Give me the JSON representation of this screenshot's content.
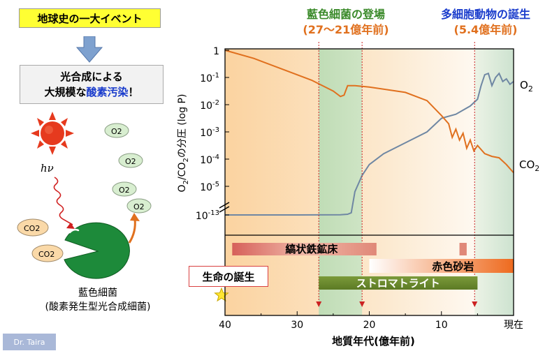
{
  "left_panel": {
    "title": "地球史の一大イベント",
    "oxygen_line1": "光合成による",
    "oxygen_line2_prefix": "大規模な",
    "oxygen_line2_highlight": "酸素汚染",
    "oxygen_line2_suffix": "！",
    "sun_label": "hν",
    "o2_bubbles": [
      "O2",
      "O2",
      "O2",
      "O2"
    ],
    "co2_bubbles": [
      "CO2",
      "CO2"
    ],
    "organism_label": "藍色細菌",
    "organism_sublabel": "(酸素発生型光合成細菌)",
    "signature": "Dr. Taira"
  },
  "milestones": {
    "cyanobacteria_title": "藍色細菌の登場",
    "cyanobacteria_range": "(27〜21億年前)",
    "multicellular_title": "多細胞動物の誕生",
    "multicellular_time": "(5.4億年前)"
  },
  "colors": {
    "o2_line": "#6f87a3",
    "co2_line": "#e0701e",
    "green_band": "#b9dcb5",
    "orange_bg": "#fbd7a8",
    "marker_red": "#cc2222"
  },
  "chart_data": {
    "type": "line",
    "ylabel": "O2/CO2の分圧 (log P)",
    "xlabel": "地質年代(億年前)",
    "y_ticks": [
      "1",
      "10-1",
      "10-2",
      "10-3",
      "10-4",
      "10-5",
      "10-13"
    ],
    "x_ticks": [
      "40",
      "30",
      "20",
      "10",
      "現在"
    ],
    "x_reversed": true,
    "xlim": [
      40,
      0
    ],
    "series": [
      {
        "name": "O2",
        "points": [
          [
            40,
            -13
          ],
          [
            30,
            -13
          ],
          [
            24,
            -12.95
          ],
          [
            23,
            -12.8
          ],
          [
            22.5,
            -12.4
          ],
          [
            22,
            -6.5
          ],
          [
            21,
            -4.6
          ],
          [
            20,
            -4.2
          ],
          [
            18,
            -3.8
          ],
          [
            15,
            -3.4
          ],
          [
            12,
            -3.0
          ],
          [
            10,
            -2.5
          ],
          [
            8,
            -2.35
          ],
          [
            6,
            -2.05
          ],
          [
            5.4,
            -1.9
          ],
          [
            5,
            -1.8
          ],
          [
            4.5,
            -1.3
          ],
          [
            4,
            -0.9
          ],
          [
            3.5,
            -0.85
          ],
          [
            3,
            -1.3
          ],
          [
            2.5,
            -1.0
          ],
          [
            2,
            -0.85
          ],
          [
            1.5,
            -1.15
          ],
          [
            1,
            -1.05
          ],
          [
            0.5,
            -1.25
          ],
          [
            0,
            -1.15
          ]
        ]
      },
      {
        "name": "CO2",
        "points": [
          [
            40,
            0
          ],
          [
            36,
            -0.3
          ],
          [
            32,
            -0.7
          ],
          [
            28,
            -1.1
          ],
          [
            25,
            -1.5
          ],
          [
            24,
            -1.7
          ],
          [
            23.5,
            -1.65
          ],
          [
            23,
            -1.3
          ],
          [
            22,
            -1.3
          ],
          [
            20,
            -1.35
          ],
          [
            15,
            -1.55
          ],
          [
            12,
            -1.85
          ],
          [
            10,
            -2.4
          ],
          [
            9,
            -2.7
          ],
          [
            8.5,
            -3.2
          ],
          [
            8,
            -2.9
          ],
          [
            7.5,
            -3.3
          ],
          [
            7,
            -3.05
          ],
          [
            6.5,
            -3.6
          ],
          [
            6,
            -3.3
          ],
          [
            5.5,
            -3.7
          ],
          [
            5,
            -3.5
          ],
          [
            4,
            -3.8
          ],
          [
            3,
            -3.9
          ],
          [
            2,
            -3.95
          ],
          [
            1,
            -4.2
          ],
          [
            0,
            -4.5
          ]
        ]
      }
    ],
    "bands": [
      {
        "label": "縞状鉄鉱床",
        "from": 39,
        "to": 19
      },
      {
        "label": "",
        "from": 7.5,
        "to": 6.5
      },
      {
        "label": "赤色砂岩",
        "from": 20,
        "to": 0
      },
      {
        "label": "ストロマトライト",
        "from": 27,
        "to": 5
      }
    ],
    "band_life_label": "生命の誕生",
    "markers": [
      27,
      21,
      5.4
    ]
  }
}
